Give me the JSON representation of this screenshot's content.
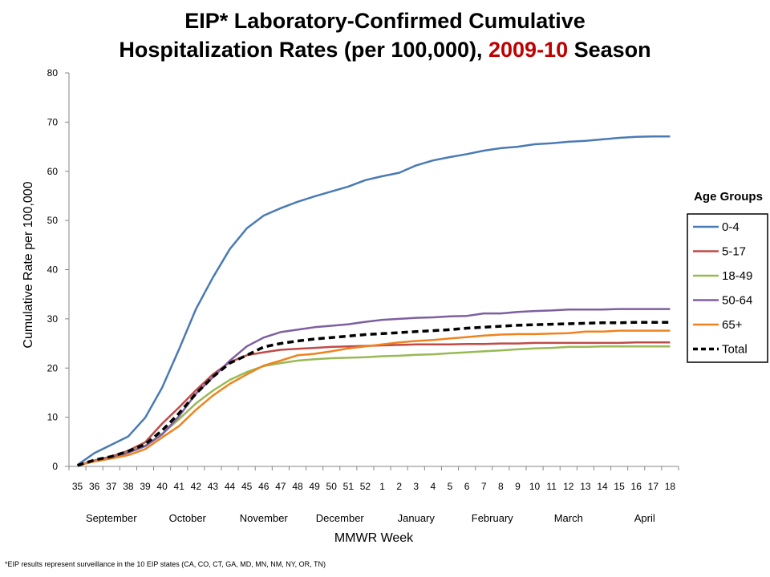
{
  "title": {
    "line1": "EIP* Laboratory-Confirmed Cumulative",
    "line2_prefix": "Hospitalization Rates (per 100,000), ",
    "line2_accent": "2009-10",
    "line2_suffix": " Season",
    "accent_color": "#c00000"
  },
  "footnote": "*EIP results represent surveillance in the 10 EIP states (CA, CO, CT, GA, MD, MN, NM, NY, OR, TN)",
  "chart_data": {
    "type": "line",
    "xlabel": "MMWR Week",
    "ylabel": "Cumulative Rate per 100,000",
    "ylim": [
      0,
      80
    ],
    "yticks": [
      0,
      10,
      20,
      30,
      40,
      50,
      60,
      70,
      80
    ],
    "grid": false,
    "legend_title": "Age Groups",
    "legend_placement": "right",
    "categories": [
      "35",
      "36",
      "37",
      "38",
      "39",
      "40",
      "41",
      "42",
      "43",
      "44",
      "45",
      "46",
      "47",
      "48",
      "49",
      "50",
      "51",
      "52",
      "1",
      "2",
      "3",
      "4",
      "5",
      "6",
      "7",
      "8",
      "9",
      "10",
      "11",
      "12",
      "13",
      "14",
      "15",
      "16",
      "17",
      "18"
    ],
    "months": [
      {
        "label": "September",
        "center_index": 2.0
      },
      {
        "label": "October",
        "center_index": 6.5
      },
      {
        "label": "November",
        "center_index": 11.0
      },
      {
        "label": "December",
        "center_index": 15.5
      },
      {
        "label": "January",
        "center_index": 20.0
      },
      {
        "label": "February",
        "center_index": 24.5
      },
      {
        "label": "March",
        "center_index": 29.0
      },
      {
        "label": "April",
        "center_index": 33.5
      }
    ],
    "series": [
      {
        "name": "0-4",
        "color": "#4a7ab5",
        "dash": false,
        "values": [
          0.3,
          2.7,
          4.4,
          6.1,
          9.9,
          16.0,
          23.8,
          32.0,
          38.4,
          44.2,
          48.4,
          51.0,
          52.5,
          53.8,
          54.9,
          55.9,
          56.9,
          58.2,
          59.0,
          59.7,
          61.2,
          62.2,
          62.9,
          63.5,
          64.2,
          64.7,
          65.0,
          65.5,
          65.7,
          66.0,
          66.2,
          66.5,
          66.8,
          67.0,
          67.1,
          67.1
        ]
      },
      {
        "name": "5-17",
        "color": "#be4b48",
        "dash": false,
        "values": [
          0.2,
          1.2,
          2.0,
          3.2,
          4.9,
          8.7,
          12.0,
          15.5,
          18.7,
          21.2,
          22.6,
          23.2,
          23.7,
          23.9,
          24.1,
          24.3,
          24.4,
          24.5,
          24.6,
          24.7,
          24.8,
          24.8,
          24.8,
          24.9,
          24.9,
          25.0,
          25.0,
          25.1,
          25.1,
          25.1,
          25.1,
          25.1,
          25.1,
          25.2,
          25.2,
          25.2
        ]
      },
      {
        "name": "18-49",
        "color": "#98b954",
        "dash": false,
        "values": [
          0.2,
          1.1,
          1.8,
          2.9,
          4.2,
          6.6,
          9.6,
          12.8,
          15.4,
          17.6,
          19.2,
          20.4,
          21.0,
          21.5,
          21.8,
          22.0,
          22.1,
          22.2,
          22.4,
          22.5,
          22.7,
          22.8,
          23.0,
          23.2,
          23.4,
          23.6,
          23.8,
          24.0,
          24.1,
          24.3,
          24.3,
          24.4,
          24.4,
          24.4,
          24.4,
          24.4
        ]
      },
      {
        "name": "50-64",
        "color": "#7d5fa0",
        "dash": false,
        "values": [
          0.2,
          1.1,
          1.8,
          2.8,
          4.1,
          6.5,
          10.2,
          14.8,
          18.1,
          21.5,
          24.4,
          26.2,
          27.3,
          27.8,
          28.3,
          28.6,
          28.9,
          29.4,
          29.8,
          30.0,
          30.2,
          30.3,
          30.5,
          30.6,
          31.1,
          31.1,
          31.4,
          31.6,
          31.7,
          31.9,
          31.9,
          31.9,
          32.0,
          32.0,
          32.0,
          32.0
        ]
      },
      {
        "name": "65+",
        "color": "#f0821e",
        "dash": false,
        "values": [
          0.2,
          1.0,
          1.6,
          2.3,
          3.5,
          5.9,
          8.2,
          11.5,
          14.4,
          16.8,
          18.7,
          20.5,
          21.5,
          22.6,
          22.9,
          23.4,
          24.0,
          24.4,
          24.8,
          25.2,
          25.5,
          25.7,
          26.0,
          26.3,
          26.6,
          26.8,
          26.9,
          26.9,
          27.0,
          27.1,
          27.4,
          27.4,
          27.6,
          27.6,
          27.6,
          27.6
        ]
      },
      {
        "name": "Total",
        "color": "#000000",
        "dash": true,
        "values": [
          0.2,
          1.3,
          2.0,
          3.1,
          4.5,
          7.3,
          10.8,
          14.8,
          18.2,
          21.0,
          22.6,
          24.3,
          25.0,
          25.5,
          25.9,
          26.2,
          26.5,
          26.8,
          27.0,
          27.2,
          27.4,
          27.6,
          27.8,
          28.1,
          28.3,
          28.5,
          28.7,
          28.8,
          28.9,
          29.0,
          29.1,
          29.2,
          29.2,
          29.3,
          29.3,
          29.3
        ]
      }
    ]
  }
}
